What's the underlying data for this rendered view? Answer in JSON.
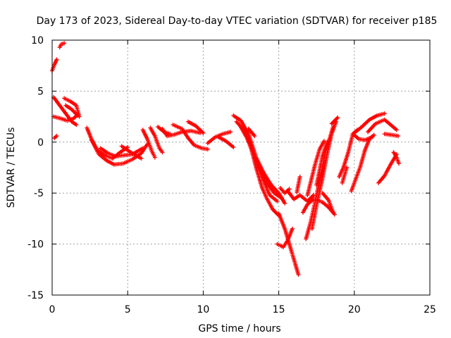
{
  "chart_data": {
    "type": "scatter",
    "title": "Day 173 of 2023, Sidereal Day-to-day VTEC variation (SDTVAR) for receiver p185",
    "xlabel": "GPS time / hours",
    "ylabel": "SDTVAR / TECUs",
    "xlim": [
      0,
      25
    ],
    "ylim": [
      -15,
      10
    ],
    "x_ticks": [
      0,
      5,
      10,
      15,
      20,
      25
    ],
    "y_ticks": [
      -15,
      -10,
      -5,
      0,
      5,
      10
    ],
    "x_tick_labels": [
      "0",
      "5",
      "10",
      "15",
      "20",
      "25"
    ],
    "y_tick_labels": [
      "-15",
      "-10",
      "-5",
      "0",
      "5",
      "10"
    ],
    "grid": true,
    "marker": "+",
    "series": [
      {
        "name": "SDTVAR",
        "color": "#ff0000",
        "tracks": [
          [
            [
              0.0,
              7.0
            ],
            [
              0.15,
              7.6
            ],
            [
              0.3,
              8.1
            ]
          ],
          [
            [
              0.5,
              9.3
            ],
            [
              0.6,
              9.6
            ],
            [
              0.8,
              9.7
            ]
          ],
          [
            [
              0.1,
              4.4
            ],
            [
              0.5,
              3.6
            ],
            [
              0.9,
              2.8
            ],
            [
              1.3,
              2.0
            ],
            [
              1.6,
              1.7
            ]
          ],
          [
            [
              0.1,
              2.5
            ],
            [
              0.6,
              2.3
            ],
            [
              1.0,
              2.1
            ],
            [
              1.4,
              2.3
            ],
            [
              1.7,
              2.7
            ]
          ],
          [
            [
              0.8,
              4.3
            ],
            [
              1.2,
              4.0
            ],
            [
              1.6,
              3.6
            ],
            [
              1.8,
              2.5
            ]
          ],
          [
            [
              0.9,
              3.6
            ],
            [
              1.3,
              3.2
            ],
            [
              1.7,
              2.6
            ]
          ],
          [
            [
              0.15,
              0.4
            ],
            [
              0.3,
              0.6
            ]
          ],
          [
            [
              2.3,
              1.4
            ],
            [
              2.6,
              0.3
            ],
            [
              3.0,
              -0.8
            ],
            [
              3.5,
              -1.3
            ],
            [
              4.0,
              -1.6
            ],
            [
              4.5,
              -1.0
            ],
            [
              5.0,
              -0.5
            ]
          ],
          [
            [
              2.6,
              0.2
            ],
            [
              3.1,
              -1.2
            ],
            [
              3.6,
              -1.8
            ],
            [
              4.1,
              -2.2
            ],
            [
              4.7,
              -2.1
            ],
            [
              5.3,
              -1.7
            ],
            [
              5.9,
              -1.1
            ],
            [
              6.3,
              -0.2
            ]
          ],
          [
            [
              3.2,
              -0.6
            ],
            [
              3.7,
              -1.1
            ],
            [
              4.2,
              -1.4
            ],
            [
              4.7,
              -1.3
            ],
            [
              5.3,
              -1.2
            ],
            [
              6.0,
              -0.6
            ]
          ],
          [
            [
              4.6,
              -0.4
            ],
            [
              5.2,
              -1.0
            ],
            [
              5.9,
              -1.6
            ]
          ],
          [
            [
              6.0,
              1.2
            ],
            [
              6.3,
              0.3
            ],
            [
              6.6,
              -0.9
            ],
            [
              6.8,
              -1.5
            ]
          ],
          [
            [
              6.5,
              1.4
            ],
            [
              6.8,
              0.6
            ],
            [
              7.1,
              -0.6
            ],
            [
              7.3,
              -1.0
            ]
          ],
          [
            [
              7.3,
              1.3
            ],
            [
              7.6,
              0.6
            ],
            [
              8.0,
              0.7
            ],
            [
              8.6,
              1.0
            ],
            [
              9.2,
              1.1
            ],
            [
              9.8,
              0.9
            ]
          ],
          [
            [
              7.0,
              1.5
            ],
            [
              7.4,
              1.0
            ],
            [
              7.8,
              0.8
            ]
          ],
          [
            [
              8.0,
              1.7
            ],
            [
              8.6,
              1.3
            ],
            [
              9.0,
              0.4
            ],
            [
              9.4,
              -0.3
            ],
            [
              9.9,
              -0.6
            ],
            [
              10.3,
              -0.7
            ]
          ],
          [
            [
              9.0,
              2.0
            ],
            [
              9.5,
              1.6
            ],
            [
              10.0,
              0.9
            ]
          ],
          [
            [
              10.3,
              -0.1
            ],
            [
              10.8,
              0.5
            ],
            [
              11.3,
              0.8
            ],
            [
              11.8,
              1.0
            ]
          ],
          [
            [
              11.0,
              0.5
            ],
            [
              11.5,
              0.1
            ],
            [
              12.0,
              -0.5
            ]
          ],
          [
            [
              12.0,
              2.6
            ],
            [
              12.5,
              2.1
            ],
            [
              13.0,
              0.8
            ],
            [
              13.5,
              -1.5
            ],
            [
              14.0,
              -3.0
            ],
            [
              14.5,
              -4.2
            ],
            [
              15.0,
              -5.0
            ],
            [
              15.4,
              -6.0
            ]
          ],
          [
            [
              12.2,
              2.0
            ],
            [
              12.7,
              1.2
            ],
            [
              13.2,
              -0.5
            ],
            [
              13.7,
              -2.5
            ],
            [
              14.2,
              -4.0
            ],
            [
              14.7,
              -5.0
            ],
            [
              15.2,
              -5.5
            ]
          ],
          [
            [
              12.4,
              1.7
            ],
            [
              12.9,
              0.4
            ],
            [
              13.4,
              -1.5
            ],
            [
              13.9,
              -3.5
            ],
            [
              14.4,
              -5.2
            ],
            [
              14.9,
              -5.8
            ]
          ],
          [
            [
              12.7,
              1.4
            ],
            [
              13.1,
              -0.2
            ],
            [
              13.5,
              -2.5
            ],
            [
              13.9,
              -4.5
            ],
            [
              14.2,
              -5.5
            ],
            [
              14.6,
              -6.6
            ],
            [
              15.0,
              -7.2
            ]
          ],
          [
            [
              13.0,
              1.3
            ],
            [
              13.4,
              0.6
            ]
          ],
          [
            [
              14.9,
              -10.0
            ],
            [
              15.3,
              -10.3
            ],
            [
              15.6,
              -9.6
            ],
            [
              15.9,
              -8.5
            ]
          ],
          [
            [
              15.0,
              -7.0
            ],
            [
              15.4,
              -8.5
            ],
            [
              15.8,
              -10.5
            ],
            [
              16.1,
              -12.0
            ],
            [
              16.3,
              -13.0
            ]
          ],
          [
            [
              15.1,
              -4.5
            ],
            [
              15.4,
              -5.0
            ],
            [
              15.7,
              -4.6
            ]
          ],
          [
            [
              15.6,
              -4.8
            ],
            [
              16.0,
              -5.6
            ],
            [
              16.4,
              -5.2
            ],
            [
              16.9,
              -5.8
            ],
            [
              17.3,
              -5.2
            ]
          ],
          [
            [
              16.2,
              -4.9
            ],
            [
              16.4,
              -3.4
            ]
          ],
          [
            [
              16.6,
              -6.9
            ],
            [
              16.9,
              -6.1
            ],
            [
              17.3,
              -5.6
            ]
          ],
          [
            [
              16.8,
              -9.5
            ],
            [
              17.1,
              -7.9
            ],
            [
              17.4,
              -5.9
            ],
            [
              17.8,
              -3.1
            ],
            [
              18.1,
              -0.9
            ],
            [
              18.4,
              0.5
            ],
            [
              18.6,
              1.5
            ]
          ],
          [
            [
              17.2,
              -8.5
            ],
            [
              17.5,
              -6.2
            ],
            [
              17.9,
              -3.5
            ],
            [
              18.2,
              -1.2
            ],
            [
              18.5,
              0.8
            ],
            [
              18.8,
              2.0
            ]
          ],
          [
            [
              16.9,
              -5.2
            ],
            [
              17.4,
              -2.2
            ],
            [
              17.7,
              -0.7
            ],
            [
              18.0,
              0.1
            ]
          ],
          [
            [
              17.5,
              -4.2
            ],
            [
              17.9,
              -1.3
            ],
            [
              18.2,
              0.0
            ]
          ],
          [
            [
              17.6,
              -5.7
            ],
            [
              17.9,
              -5.9
            ],
            [
              18.3,
              -6.4
            ],
            [
              18.7,
              -7.1
            ]
          ],
          [
            [
              17.9,
              -5.0
            ],
            [
              18.3,
              -5.7
            ],
            [
              18.6,
              -6.9
            ]
          ],
          [
            [
              18.5,
              1.8
            ],
            [
              18.9,
              2.4
            ]
          ],
          [
            [
              19.0,
              -3.4
            ],
            [
              19.3,
              -2.4
            ],
            [
              19.6,
              -1.0
            ],
            [
              19.9,
              0.8
            ],
            [
              20.2,
              1.2
            ]
          ],
          [
            [
              19.2,
              -4.0
            ],
            [
              19.5,
              -2.5
            ]
          ],
          [
            [
              19.8,
              -4.8
            ],
            [
              20.1,
              -3.6
            ],
            [
              20.4,
              -2.4
            ],
            [
              20.7,
              -0.8
            ],
            [
              21.0,
              0.3
            ],
            [
              21.3,
              0.7
            ]
          ],
          [
            [
              19.9,
              0.8
            ],
            [
              20.3,
              0.3
            ],
            [
              20.7,
              0.2
            ],
            [
              21.2,
              0.5
            ]
          ],
          [
            [
              20.0,
              0.9
            ],
            [
              20.5,
              1.5
            ],
            [
              21.0,
              2.2
            ],
            [
              21.5,
              2.6
            ],
            [
              22.0,
              2.8
            ]
          ],
          [
            [
              20.9,
              1.0
            ],
            [
              21.4,
              1.8
            ],
            [
              22.0,
              2.2
            ],
            [
              22.4,
              1.7
            ],
            [
              22.8,
              1.2
            ]
          ],
          [
            [
              21.6,
              -4.0
            ],
            [
              22.0,
              -3.3
            ],
            [
              22.4,
              -2.2
            ],
            [
              22.8,
              -1.2
            ]
          ],
          [
            [
              22.0,
              0.8
            ],
            [
              22.5,
              0.7
            ],
            [
              22.9,
              0.6
            ]
          ],
          [
            [
              22.6,
              -1.0
            ],
            [
              22.8,
              -1.5
            ],
            [
              22.95,
              -2.1
            ]
          ]
        ]
      }
    ]
  }
}
